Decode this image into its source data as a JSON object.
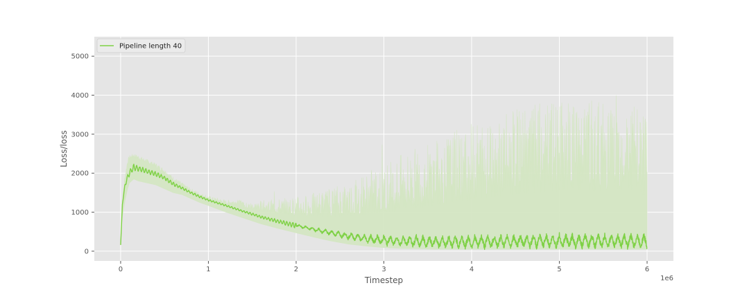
{
  "chart_data": {
    "type": "line",
    "title": "",
    "xlabel": "Timestep",
    "ylabel": "Loss/loss",
    "x_multiplier_label": "1e6",
    "xlim": [
      -0.3,
      6.3
    ],
    "ylim": [
      -250,
      5500
    ],
    "x_ticks": [
      0,
      1,
      2,
      3,
      4,
      5,
      6
    ],
    "y_ticks": [
      0,
      1000,
      2000,
      3000,
      4000,
      5000
    ],
    "grid": true,
    "legend_position": "top-left",
    "colors": {
      "line": "#7ed145",
      "band": "#d4e6c3",
      "background": "#e5e5e5",
      "grid": "#ffffff"
    },
    "series": [
      {
        "name": "Pipeline length 40",
        "x": [
          0.0,
          0.02,
          0.05,
          0.08,
          0.1,
          0.15,
          0.2,
          0.3,
          0.4,
          0.5,
          0.6,
          0.7,
          0.8,
          0.9,
          1.0,
          1.2,
          1.4,
          1.6,
          1.8,
          2.0,
          2.2,
          2.4,
          2.6,
          2.8,
          3.0,
          3.2,
          3.4,
          3.6,
          3.8,
          4.0,
          4.2,
          4.4,
          4.6,
          4.8,
          5.0,
          5.2,
          5.4,
          5.6,
          5.8,
          6.0
        ],
        "y": [
          160,
          1200,
          1700,
          1900,
          2000,
          2150,
          2120,
          2050,
          1980,
          1880,
          1720,
          1620,
          1500,
          1400,
          1310,
          1170,
          1020,
          880,
          760,
          660,
          560,
          470,
          390,
          320,
          280,
          260,
          250,
          240,
          240,
          240,
          245,
          250,
          255,
          255,
          260,
          260,
          260,
          260,
          260,
          260
        ],
        "osc_amplitude": [
          0,
          0,
          40,
          60,
          70,
          70,
          60,
          50,
          50,
          40,
          40,
          30,
          25,
          25,
          20,
          20,
          20,
          30,
          40,
          60,
          80,
          110,
          140,
          170,
          200,
          230,
          250,
          260,
          270,
          280,
          280,
          285,
          290,
          290,
          290,
          290,
          290,
          290,
          290,
          290
        ],
        "band_high": [
          160,
          1300,
          1900,
          2300,
          2400,
          2450,
          2400,
          2300,
          2200,
          2050,
          1850,
          1700,
          1560,
          1450,
          1360,
          1250,
          1250,
          1300,
          1350,
          1400,
          1500,
          1650,
          1850,
          2050,
          2300,
          2500,
          2700,
          2900,
          3100,
          3300,
          3500,
          3600,
          3700,
          3800,
          3900,
          3900,
          3900,
          4000,
          4000,
          3400
        ],
        "band_low": [
          160,
          900,
          1300,
          1600,
          1750,
          1850,
          1800,
          1750,
          1700,
          1600,
          1500,
          1450,
          1350,
          1250,
          1170,
          1000,
          850,
          700,
          580,
          470,
          360,
          260,
          180,
          130,
          90,
          70,
          60,
          50,
          50,
          50,
          50,
          50,
          50,
          50,
          50,
          50,
          50,
          50,
          50,
          50
        ]
      }
    ]
  }
}
